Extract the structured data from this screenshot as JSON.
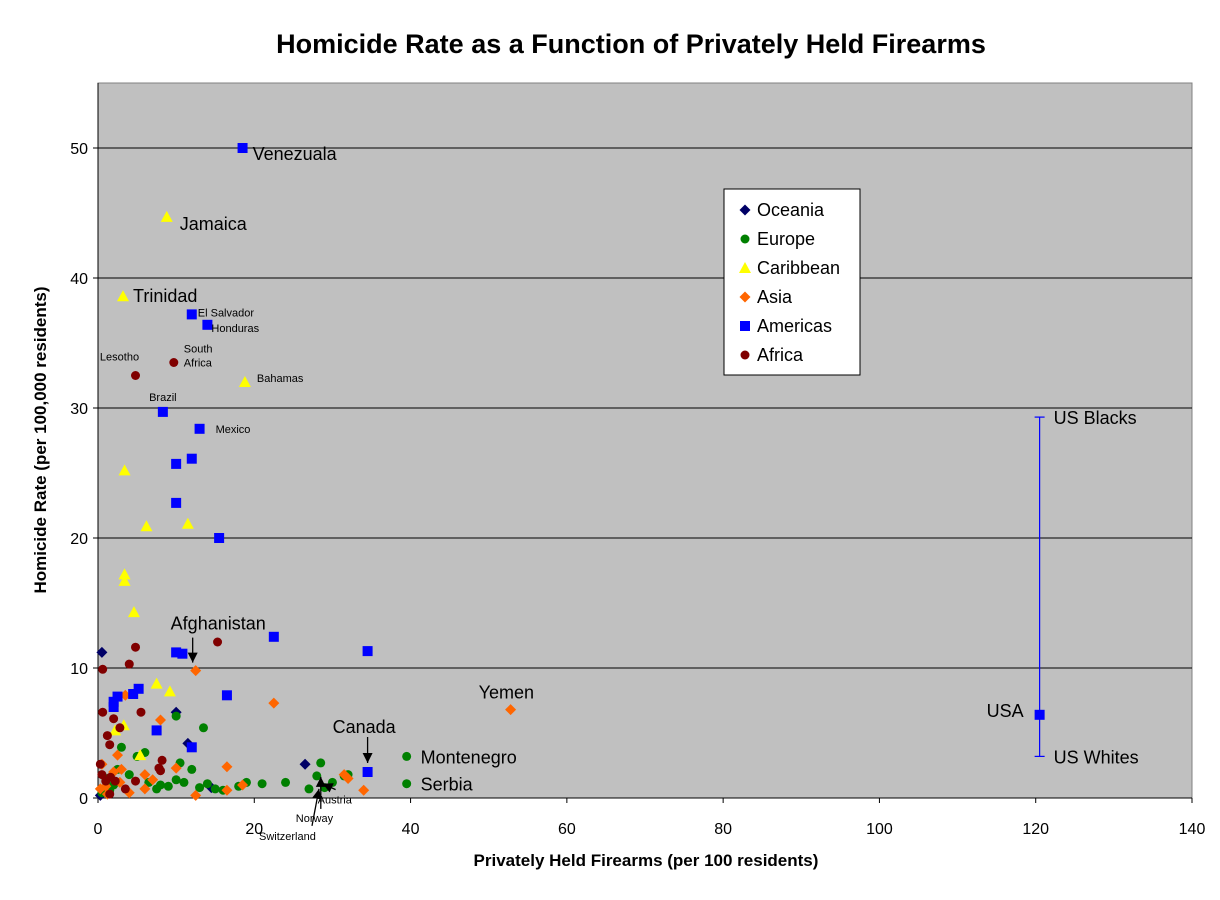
{
  "chart_data": {
    "type": "scatter",
    "title": "Homicide Rate as a Function of Privately Held Firearms",
    "xlabel": "Privately Held Firearms (per 100 residents)",
    "ylabel": "Homicide Rate (per 100,000 residents)",
    "xlim": [
      0,
      140
    ],
    "ylim": [
      0,
      55
    ],
    "x_ticks": [
      0,
      20,
      40,
      60,
      80,
      100,
      120,
      140
    ],
    "y_ticks": [
      0,
      10,
      20,
      30,
      40,
      50
    ],
    "grid": "horizontal",
    "legend_position": "top-right",
    "series": [
      {
        "name": "Oceania",
        "marker": "diamond",
        "color": "#000066",
        "points": [
          [
            0.5,
            11.2
          ],
          [
            0.3,
            0.2
          ],
          [
            10,
            6.6
          ],
          [
            11.5,
            4.2
          ],
          [
            26.5,
            2.6
          ],
          [
            14.5,
            0.8
          ]
        ]
      },
      {
        "name": "Europe",
        "marker": "circle",
        "color": "#008000",
        "points": [
          [
            39.5,
            3.2
          ],
          [
            39.5,
            1.1
          ],
          [
            28.5,
            2.7
          ],
          [
            28,
            1.7
          ],
          [
            29,
            0.8
          ],
          [
            30,
            1.2
          ],
          [
            31.5,
            1.7
          ],
          [
            32,
            1.8
          ],
          [
            27,
            0.7
          ],
          [
            24,
            1.2
          ],
          [
            21,
            1.1
          ],
          [
            19,
            1.2
          ],
          [
            18,
            0.9
          ],
          [
            16,
            0.6
          ],
          [
            15,
            0.7
          ],
          [
            14,
            1.1
          ],
          [
            13.5,
            5.4
          ],
          [
            13,
            0.8
          ],
          [
            12,
            2.2
          ],
          [
            11,
            1.2
          ],
          [
            10.5,
            2.7
          ],
          [
            10,
            6.3
          ],
          [
            10,
            1.4
          ],
          [
            9,
            0.9
          ],
          [
            8,
            1.0
          ],
          [
            7.5,
            0.7
          ],
          [
            6.5,
            1.2
          ],
          [
            6,
            3.5
          ],
          [
            5,
            3.2
          ],
          [
            4,
            1.8
          ],
          [
            3,
            3.9
          ],
          [
            2.5,
            2.2
          ],
          [
            2,
            1.0
          ],
          [
            1.5,
            0.6
          ],
          [
            1,
            1.5
          ],
          [
            0.5,
            0.4
          ]
        ]
      },
      {
        "name": "Caribbean",
        "marker": "triangle",
        "color": "#ffff00",
        "points": [
          [
            8.8,
            44.7
          ],
          [
            3.2,
            38.6
          ],
          [
            18.8,
            32.0
          ],
          [
            3.4,
            25.2
          ],
          [
            6.2,
            20.9
          ],
          [
            11.5,
            21.1
          ],
          [
            3.4,
            17.2
          ],
          [
            3.4,
            16.7
          ],
          [
            4.6,
            14.3
          ],
          [
            7.5,
            8.8
          ],
          [
            9.2,
            8.2
          ],
          [
            3.3,
            5.6
          ],
          [
            2.2,
            5.2
          ],
          [
            5.4,
            3.3
          ]
        ]
      },
      {
        "name": "Asia",
        "marker": "diamond",
        "color": "#ff6600",
        "points": [
          [
            12.5,
            9.8
          ],
          [
            52.8,
            6.8
          ],
          [
            22.5,
            7.3
          ],
          [
            8,
            6.0
          ],
          [
            3.5,
            7.9
          ],
          [
            16.5,
            2.4
          ],
          [
            10,
            2.3
          ],
          [
            6,
            1.8
          ],
          [
            7,
            1.4
          ],
          [
            3,
            2.2
          ],
          [
            2.5,
            3.3
          ],
          [
            2,
            2.0
          ],
          [
            1,
            0.9
          ],
          [
            0.5,
            2.6
          ],
          [
            0.3,
            0.7
          ],
          [
            4,
            0.4
          ],
          [
            6,
            0.7
          ],
          [
            12.5,
            0.2
          ],
          [
            16.5,
            0.6
          ],
          [
            18.5,
            1.0
          ],
          [
            34,
            0.6
          ],
          [
            31.5,
            1.8
          ],
          [
            32,
            1.5
          ],
          [
            1.2,
            0.3
          ],
          [
            2.8,
            1.2
          ]
        ]
      },
      {
        "name": "Americas",
        "marker": "square",
        "color": "#0000ff",
        "points": [
          [
            18.5,
            50.0
          ],
          [
            12,
            37.2
          ],
          [
            14,
            36.4
          ],
          [
            8.3,
            29.7
          ],
          [
            13,
            28.4
          ],
          [
            10,
            25.7
          ],
          [
            12,
            26.1
          ],
          [
            10,
            22.7
          ],
          [
            15.5,
            20.0
          ],
          [
            22.5,
            12.4
          ],
          [
            34.5,
            11.3
          ],
          [
            10,
            11.2
          ],
          [
            10.8,
            11.1
          ],
          [
            16.5,
            7.9
          ],
          [
            5.2,
            8.4
          ],
          [
            4.5,
            8.0
          ],
          [
            2.5,
            7.8
          ],
          [
            2,
            7.4
          ],
          [
            2,
            7.0
          ],
          [
            7.5,
            5.2
          ],
          [
            12,
            3.9
          ],
          [
            34.5,
            2.0
          ],
          [
            120.5,
            6.4
          ]
        ]
      },
      {
        "name": "Africa",
        "marker": "circle",
        "color": "#800000",
        "points": [
          [
            4.8,
            32.5
          ],
          [
            9.7,
            33.5
          ],
          [
            15.3,
            12.0
          ],
          [
            4.8,
            11.6
          ],
          [
            4.0,
            10.3
          ],
          [
            0.6,
            9.9
          ],
          [
            0.6,
            6.6
          ],
          [
            5.5,
            6.6
          ],
          [
            2,
            6.1
          ],
          [
            2.8,
            5.4
          ],
          [
            1.2,
            4.8
          ],
          [
            1.5,
            4.1
          ],
          [
            8.2,
            2.9
          ],
          [
            7.8,
            2.3
          ],
          [
            8,
            2.1
          ],
          [
            0.3,
            2.6
          ],
          [
            0.5,
            1.8
          ],
          [
            1,
            1.3
          ],
          [
            1.6,
            1.6
          ],
          [
            2.2,
            1.3
          ],
          [
            4.8,
            1.3
          ],
          [
            3.5,
            0.7
          ],
          [
            1.5,
            0.3
          ]
        ]
      }
    ],
    "range_bar": {
      "x": 120.5,
      "y_low": 3.2,
      "y_high": 29.3,
      "color": "#0000ff"
    },
    "labels": [
      {
        "text": "Venezuala",
        "x": 18.5,
        "y": 50.0,
        "size": "big"
      },
      {
        "text": "Jamaica",
        "x": 8.8,
        "y": 44.7,
        "size": "big"
      },
      {
        "text": "Trinidad",
        "x": 3.2,
        "y": 38.6,
        "size": "big"
      },
      {
        "text": "El Salvador",
        "x": 12,
        "y": 37.2,
        "size": "small"
      },
      {
        "text": "Honduras",
        "x": 14,
        "y": 36.4,
        "size": "small"
      },
      {
        "text": "South",
        "x": 9.7,
        "y": 33.5,
        "size": "small"
      },
      {
        "text": "Africa",
        "x": 9.7,
        "y": 33.5,
        "size": "small"
      },
      {
        "text": "Lesotho",
        "x": 4.8,
        "y": 32.5,
        "size": "small"
      },
      {
        "text": "Bahamas",
        "x": 18.8,
        "y": 32.0,
        "size": "small"
      },
      {
        "text": "Brazil",
        "x": 8.3,
        "y": 29.7,
        "size": "small"
      },
      {
        "text": "Mexico",
        "x": 13,
        "y": 28.4,
        "size": "small"
      },
      {
        "text": "Afghanistan",
        "x": 12.5,
        "y": 9.8,
        "size": "big"
      },
      {
        "text": "Yemen",
        "x": 52.8,
        "y": 6.8,
        "size": "big"
      },
      {
        "text": "Canada",
        "x": 34.5,
        "y": 2.0,
        "size": "big"
      },
      {
        "text": "Montenegro",
        "x": 39.5,
        "y": 3.2,
        "size": "big"
      },
      {
        "text": "Serbia",
        "x": 39.5,
        "y": 1.1,
        "size": "big"
      },
      {
        "text": "Austria",
        "x": 29,
        "y": 0.8,
        "size": "small"
      },
      {
        "text": "Norway",
        "x": 28,
        "y": 0.7,
        "size": "small"
      },
      {
        "text": "Switzerland",
        "x": 27,
        "y": 0.7,
        "size": "small"
      },
      {
        "text": "USA",
        "x": 120.5,
        "y": 6.4,
        "size": "big"
      },
      {
        "text": "US Blacks",
        "x": 120.5,
        "y": 29.3,
        "size": "big"
      },
      {
        "text": "US Whites",
        "x": 120.5,
        "y": 3.2,
        "size": "big"
      }
    ]
  }
}
